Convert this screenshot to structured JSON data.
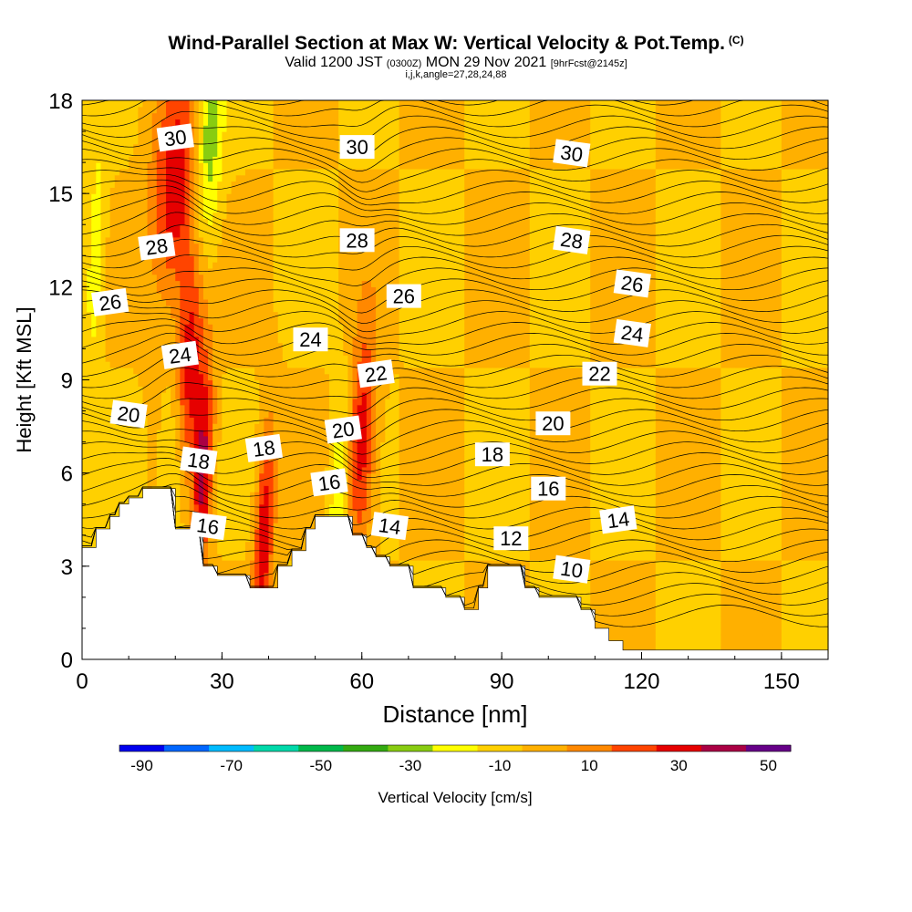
{
  "header": {
    "title": "Wind-Parallel Section at Max W: Vertical Velocity & Pot.Temp.",
    "copyright": "(C)",
    "valid_prefix": "Valid 1200 JST",
    "valid_small": "(0300Z)",
    "valid_date": "MON 29 Nov 2021",
    "valid_forecast": "[9hrFcst@2145z]",
    "indices": "i,j,k,angle=27,28,24,88"
  },
  "chart_data": {
    "type": "heatmap",
    "title": "Wind-Parallel Section at Max W: Vertical Velocity & Pot.Temp.",
    "xlabel": "Distance [nm]",
    "ylabel": "Height [Kft MSL]",
    "xlim": [
      0,
      160
    ],
    "ylim": [
      0,
      18
    ],
    "x_ticks": [
      "0",
      "30",
      "60",
      "90",
      "120",
      "150"
    ],
    "y_ticks": [
      "0",
      "3",
      "6",
      "9",
      "12",
      "15",
      "18"
    ],
    "colorbar": {
      "label": "Vertical Velocity [cm/s]",
      "ticks": [
        "-90",
        "-70",
        "-50",
        "-30",
        "-10",
        "10",
        "30",
        "50"
      ],
      "colors": [
        "#0000ee",
        "#0066ff",
        "#00bbff",
        "#00d9aa",
        "#00b84a",
        "#33aa11",
        "#88cc11",
        "#ffff00",
        "#ffd000",
        "#ffb000",
        "#ff8800",
        "#ff4400",
        "#e60000",
        "#aa0044",
        "#660088"
      ]
    },
    "background_velocity": -5,
    "velocity_features": [
      {
        "x": 20,
        "y": 15.0,
        "width": 5,
        "value": 30
      },
      {
        "x": 23,
        "y": 9.5,
        "width": 3,
        "value": 30
      },
      {
        "x": 26,
        "y": 6.0,
        "width": 2,
        "value": 30
      },
      {
        "x": 60,
        "y": 7.0,
        "width": 3,
        "value": 30
      },
      {
        "x": 39,
        "y": 4.0,
        "width": 2,
        "value": 30
      },
      {
        "x": 27,
        "y": 16.5,
        "width": 3,
        "value": -40
      },
      {
        "x": 3,
        "y": 13.0,
        "width": 2,
        "value": -30
      },
      {
        "x": 20,
        "y": 6.5,
        "width": 3,
        "value": -30
      },
      {
        "x": 55,
        "y": 5.2,
        "width": 2,
        "value": -30
      }
    ],
    "potential_temperature_labels": [
      {
        "value": "30",
        "x": 20,
        "y": 16.8
      },
      {
        "value": "30",
        "x": 59,
        "y": 16.5
      },
      {
        "value": "30",
        "x": 105,
        "y": 16.3
      },
      {
        "value": "28",
        "x": 16,
        "y": 13.3
      },
      {
        "value": "28",
        "x": 59,
        "y": 13.5
      },
      {
        "value": "28",
        "x": 105,
        "y": 13.5
      },
      {
        "value": "26",
        "x": 6,
        "y": 11.5
      },
      {
        "value": "26",
        "x": 69,
        "y": 11.7
      },
      {
        "value": "26",
        "x": 118,
        "y": 12.1
      },
      {
        "value": "24",
        "x": 21,
        "y": 9.8
      },
      {
        "value": "24",
        "x": 49,
        "y": 10.3
      },
      {
        "value": "24",
        "x": 118,
        "y": 10.5
      },
      {
        "value": "22",
        "x": 63,
        "y": 9.2
      },
      {
        "value": "22",
        "x": 111,
        "y": 9.2
      },
      {
        "value": "20",
        "x": 10,
        "y": 7.9
      },
      {
        "value": "20",
        "x": 56,
        "y": 7.4
      },
      {
        "value": "20",
        "x": 101,
        "y": 7.6
      },
      {
        "value": "18",
        "x": 25,
        "y": 6.4
      },
      {
        "value": "18",
        "x": 39,
        "y": 6.8
      },
      {
        "value": "18",
        "x": 88,
        "y": 6.6
      },
      {
        "value": "16",
        "x": 27,
        "y": 4.3
      },
      {
        "value": "16",
        "x": 53,
        "y": 5.7
      },
      {
        "value": "16",
        "x": 100,
        "y": 5.5
      },
      {
        "value": "14",
        "x": 66,
        "y": 4.3
      },
      {
        "value": "14",
        "x": 115,
        "y": 4.5
      },
      {
        "value": "12",
        "x": 92,
        "y": 3.9
      },
      {
        "value": "10",
        "x": 105,
        "y": 2.9
      }
    ],
    "terrain": [
      {
        "x": 0,
        "h": 3.6
      },
      {
        "x": 3,
        "h": 3.6
      },
      {
        "x": 3,
        "h": 4.2
      },
      {
        "x": 6,
        "h": 4.2
      },
      {
        "x": 6,
        "h": 4.6
      },
      {
        "x": 8,
        "h": 4.6
      },
      {
        "x": 8,
        "h": 5.0
      },
      {
        "x": 10,
        "h": 5.0
      },
      {
        "x": 10,
        "h": 5.2
      },
      {
        "x": 13,
        "h": 5.2
      },
      {
        "x": 13,
        "h": 5.5
      },
      {
        "x": 20,
        "h": 5.5
      },
      {
        "x": 20,
        "h": 4.2
      },
      {
        "x": 26,
        "h": 4.2
      },
      {
        "x": 26,
        "h": 3.0
      },
      {
        "x": 29,
        "h": 3.0
      },
      {
        "x": 29,
        "h": 2.7
      },
      {
        "x": 36,
        "h": 2.7
      },
      {
        "x": 36,
        "h": 2.3
      },
      {
        "x": 42,
        "h": 2.3
      },
      {
        "x": 42,
        "h": 3.0
      },
      {
        "x": 45,
        "h": 3.0
      },
      {
        "x": 45,
        "h": 3.5
      },
      {
        "x": 48,
        "h": 3.5
      },
      {
        "x": 48,
        "h": 4.2
      },
      {
        "x": 50,
        "h": 4.2
      },
      {
        "x": 50,
        "h": 4.6
      },
      {
        "x": 58,
        "h": 4.6
      },
      {
        "x": 58,
        "h": 4.0
      },
      {
        "x": 61,
        "h": 4.0
      },
      {
        "x": 61,
        "h": 3.6
      },
      {
        "x": 63,
        "h": 3.6
      },
      {
        "x": 63,
        "h": 3.3
      },
      {
        "x": 66,
        "h": 3.3
      },
      {
        "x": 66,
        "h": 3.0
      },
      {
        "x": 71,
        "h": 3.0
      },
      {
        "x": 71,
        "h": 2.3
      },
      {
        "x": 78,
        "h": 2.3
      },
      {
        "x": 78,
        "h": 2.0
      },
      {
        "x": 82,
        "h": 2.0
      },
      {
        "x": 82,
        "h": 1.6
      },
      {
        "x": 85,
        "h": 1.6
      },
      {
        "x": 85,
        "h": 2.3
      },
      {
        "x": 87,
        "h": 2.3
      },
      {
        "x": 87,
        "h": 3.0
      },
      {
        "x": 95,
        "h": 3.0
      },
      {
        "x": 95,
        "h": 2.3
      },
      {
        "x": 98,
        "h": 2.3
      },
      {
        "x": 98,
        "h": 2.0
      },
      {
        "x": 107,
        "h": 2.0
      },
      {
        "x": 107,
        "h": 1.6
      },
      {
        "x": 110,
        "h": 1.6
      },
      {
        "x": 110,
        "h": 1.0
      },
      {
        "x": 113,
        "h": 1.0
      },
      {
        "x": 113,
        "h": 0.6
      },
      {
        "x": 116,
        "h": 0.6
      },
      {
        "x": 116,
        "h": 0.3
      },
      {
        "x": 160,
        "h": 0.3
      }
    ]
  }
}
